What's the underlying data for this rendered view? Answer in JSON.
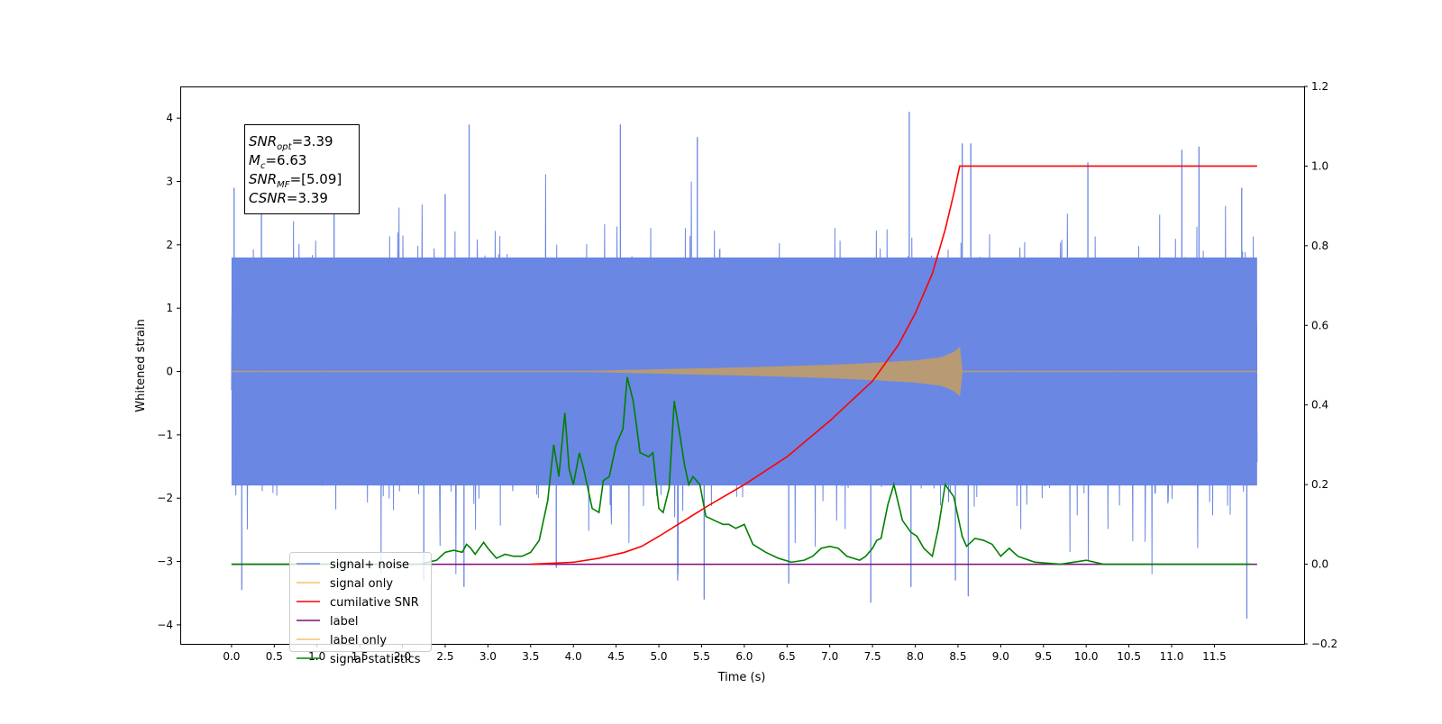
{
  "chart_data": {
    "type": "line",
    "title": "",
    "xlabel": "Time (s)",
    "ylabel": "Whitened strain",
    "xlim": [
      -0.6,
      12.55
    ],
    "ylim": [
      -4.3,
      4.5
    ],
    "y2lim": [
      -0.2,
      1.2
    ],
    "x_ticks": [
      0.0,
      0.5,
      1.0,
      1.5,
      2.0,
      2.5,
      3.0,
      3.5,
      4.0,
      4.5,
      5.0,
      5.5,
      6.0,
      6.5,
      7.0,
      7.5,
      8.0,
      8.5,
      9.0,
      9.5,
      10.0,
      10.5,
      11.0,
      11.5
    ],
    "x_tick_labels": [
      "0.0",
      "0.5",
      "1.0",
      "1.5",
      "2.0",
      "2.5",
      "3.0",
      "3.5",
      "4.0",
      "4.5",
      "5.0",
      "5.5",
      "6.0",
      "6.5",
      "7.0",
      "7.5",
      "8.0",
      "8.5",
      "9.0",
      "9.5",
      "10.0",
      "10.5",
      "11.0",
      "11.5"
    ],
    "y_ticks": [
      4,
      3,
      2,
      1,
      0,
      -1,
      -2,
      -3,
      -4
    ],
    "y_tick_labels": [
      "4",
      "3",
      "2",
      "1",
      "0",
      "−1",
      "−2",
      "−3",
      "−4"
    ],
    "y2_ticks": [
      1.2,
      1.0,
      0.8,
      0.6,
      0.4,
      0.2,
      0.0,
      -0.2
    ],
    "y2_tick_labels": [
      "1.2",
      "1.0",
      "0.8",
      "0.6",
      "0.4",
      "0.2",
      "0.0",
      "−0.2"
    ],
    "grid": false,
    "legend_placement": "lower-left",
    "colors": {
      "noise": "#6a87e3",
      "signal": "#f5c06a",
      "signal_overlay": "#b89a74",
      "snr": "#ff0000",
      "label": "#7b0b7b",
      "stats": "#008000"
    },
    "series": [
      {
        "name": "signal+ noise",
        "axis": "left",
        "t_range": [
          0.0,
          12.0
        ],
        "band_lower": -1.8,
        "band_upper": 1.8,
        "spikes_up": [
          {
            "x": 0.03,
            "y": 2.9
          },
          {
            "x": 0.35,
            "y": 2.7
          },
          {
            "x": 1.2,
            "y": 2.6
          },
          {
            "x": 2.5,
            "y": 2.8
          },
          {
            "x": 2.78,
            "y": 3.9
          },
          {
            "x": 4.55,
            "y": 3.9
          },
          {
            "x": 5.45,
            "y": 3.7
          },
          {
            "x": 7.93,
            "y": 4.1
          },
          {
            "x": 8.55,
            "y": 3.6
          },
          {
            "x": 8.65,
            "y": 3.6
          },
          {
            "x": 10.02,
            "y": 3.3
          },
          {
            "x": 11.12,
            "y": 3.5
          },
          {
            "x": 11.32,
            "y": 3.55
          },
          {
            "x": 11.82,
            "y": 2.9
          }
        ],
        "spikes_down": [
          {
            "x": 0.12,
            "y": -3.45
          },
          {
            "x": 2.72,
            "y": -3.4
          },
          {
            "x": 2.25,
            "y": -3.3
          },
          {
            "x": 3.8,
            "y": -3.1
          },
          {
            "x": 5.53,
            "y": -3.6
          },
          {
            "x": 5.22,
            "y": -3.3
          },
          {
            "x": 6.52,
            "y": -3.35
          },
          {
            "x": 7.48,
            "y": -3.65
          },
          {
            "x": 7.95,
            "y": -3.4
          },
          {
            "x": 8.47,
            "y": -3.3
          },
          {
            "x": 8.62,
            "y": -3.55
          },
          {
            "x": 11.88,
            "y": -3.9
          }
        ]
      },
      {
        "name": "signal only",
        "axis": "left",
        "t_range": [
          0.0,
          12.0
        ],
        "envelope": [
          [
            4.0,
            0.0
          ],
          [
            5.0,
            0.03
          ],
          [
            6.0,
            0.06
          ],
          [
            7.0,
            0.1
          ],
          [
            7.5,
            0.13
          ],
          [
            8.0,
            0.17
          ],
          [
            8.3,
            0.22
          ],
          [
            8.45,
            0.3
          ],
          [
            8.52,
            0.38
          ],
          [
            8.55,
            0.0
          ]
        ]
      },
      {
        "name": "cumilative SNR",
        "axis": "right",
        "x": [
          3.5,
          4.0,
          4.3,
          4.6,
          4.8,
          5.0,
          5.3,
          5.6,
          6.0,
          6.5,
          7.0,
          7.5,
          7.8,
          8.0,
          8.2,
          8.35,
          8.45,
          8.5,
          8.52,
          12.0
        ],
        "values": [
          0.0,
          0.005,
          0.015,
          0.03,
          0.045,
          0.07,
          0.11,
          0.15,
          0.2,
          0.27,
          0.36,
          0.46,
          0.55,
          0.63,
          0.73,
          0.84,
          0.93,
          0.98,
          1.0,
          1.0
        ]
      },
      {
        "name": "label",
        "axis": "right",
        "x": [
          0.0,
          12.0
        ],
        "values": [
          0.0,
          0.0
        ]
      },
      {
        "name": "label only",
        "axis": "right",
        "x": [],
        "values": []
      },
      {
        "name": "signal statistics",
        "axis": "right",
        "x": [
          0.0,
          2.2,
          2.4,
          2.5,
          2.6,
          2.7,
          2.75,
          2.8,
          2.85,
          2.95,
          3.0,
          3.1,
          3.2,
          3.3,
          3.4,
          3.5,
          3.6,
          3.7,
          3.77,
          3.83,
          3.9,
          3.95,
          4.0,
          4.07,
          4.12,
          4.22,
          4.3,
          4.35,
          4.42,
          4.5,
          4.58,
          4.63,
          4.7,
          4.78,
          4.88,
          4.93,
          5.0,
          5.05,
          5.12,
          5.18,
          5.25,
          5.3,
          5.35,
          5.4,
          5.48,
          5.55,
          5.65,
          5.75,
          5.82,
          5.9,
          6.0,
          6.1,
          6.25,
          6.4,
          6.55,
          6.7,
          6.8,
          6.9,
          7.0,
          7.1,
          7.2,
          7.35,
          7.42,
          7.5,
          7.55,
          7.6,
          7.68,
          7.75,
          7.85,
          7.95,
          8.02,
          8.1,
          8.2,
          8.27,
          8.35,
          8.45,
          8.55,
          8.6,
          8.7,
          8.8,
          8.9,
          9.0,
          9.1,
          9.2,
          9.4,
          9.7,
          10.0,
          10.2,
          10.6,
          11.0,
          11.93
        ],
        "values": [
          0.0,
          0.0,
          0.01,
          0.03,
          0.035,
          0.03,
          0.05,
          0.04,
          0.025,
          0.055,
          0.04,
          0.015,
          0.025,
          0.02,
          0.02,
          0.03,
          0.06,
          0.16,
          0.3,
          0.22,
          0.38,
          0.24,
          0.2,
          0.28,
          0.24,
          0.14,
          0.13,
          0.21,
          0.22,
          0.3,
          0.34,
          0.47,
          0.41,
          0.28,
          0.27,
          0.28,
          0.14,
          0.13,
          0.19,
          0.41,
          0.32,
          0.25,
          0.2,
          0.22,
          0.2,
          0.12,
          0.11,
          0.1,
          0.1,
          0.09,
          0.1,
          0.05,
          0.03,
          0.015,
          0.005,
          0.01,
          0.02,
          0.04,
          0.045,
          0.04,
          0.02,
          0.01,
          0.02,
          0.04,
          0.06,
          0.065,
          0.15,
          0.2,
          0.11,
          0.08,
          0.07,
          0.04,
          0.02,
          0.09,
          0.2,
          0.17,
          0.07,
          0.045,
          0.065,
          0.06,
          0.05,
          0.02,
          0.04,
          0.02,
          0.005,
          0.0,
          0.01,
          0.0,
          0.0,
          0.0,
          0.0
        ]
      }
    ],
    "legend": [
      {
        "name": "signal+ noise",
        "color": "#6a87e3"
      },
      {
        "name": "signal only",
        "color": "#f5c06a"
      },
      {
        "name": "cumilative SNR",
        "color": "#ff0000"
      },
      {
        "name": "label",
        "color": "#7b0b7b"
      },
      {
        "name": "label only",
        "color": "#f5c06a"
      },
      {
        "name": "signal statistics",
        "color": "#008000"
      }
    ],
    "annotations": [
      {
        "base": "SNR",
        "sub": "opt",
        "value": "=3.39"
      },
      {
        "base": "M",
        "sub": "c",
        "value": "=6.63"
      },
      {
        "base": "SNR",
        "sub": "MF",
        "value": "=[5.09]"
      },
      {
        "base": "CSNR",
        "sub": "",
        "value": "=3.39"
      }
    ]
  }
}
